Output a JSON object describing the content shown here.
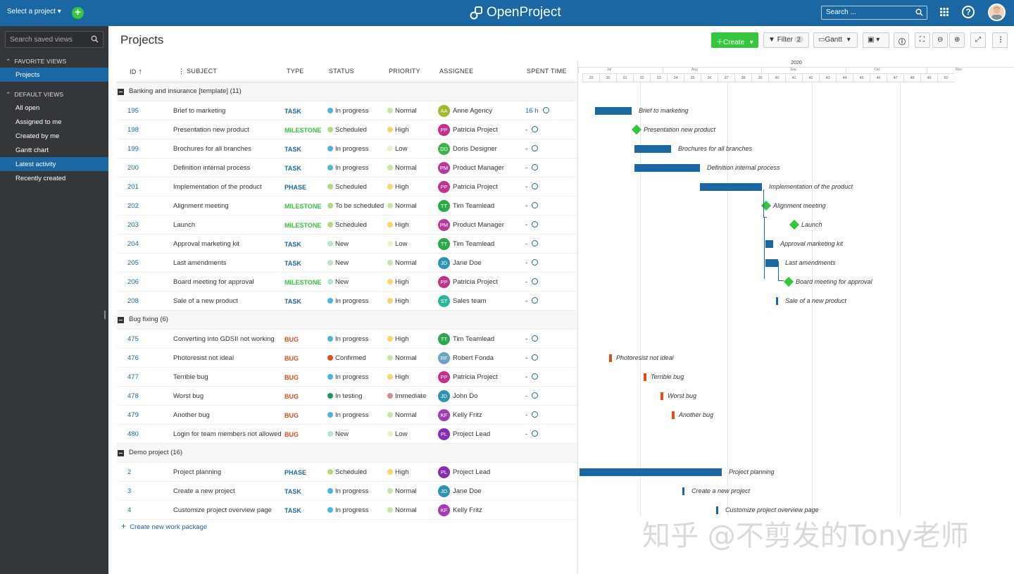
{
  "topbar": {
    "project_select": "Select a project ▾",
    "add_icon": "plus-icon",
    "logo_text": "OpenProject",
    "search_placeholder": "Search ...",
    "accent": "#1a67a3"
  },
  "sidebar": {
    "search_placeholder": "Search saved views",
    "favorite_header": "FAVORITE VIEWS",
    "favorite_items": [
      "Projects"
    ],
    "default_header": "DEFAULT VIEWS",
    "default_items": [
      "All open",
      "Assigned to me",
      "Created by me",
      "Gantt chart",
      "Latest activity",
      "Recently created"
    ]
  },
  "header": {
    "title": "Projects",
    "create_label": "Create",
    "filter_label": "Filter",
    "filter_count": "2",
    "gantt_label": "Gantt"
  },
  "columns": [
    "ID",
    "SUBJECT",
    "TYPE",
    "STATUS",
    "PRIORITY",
    "ASSIGNEE",
    "SPENT TIME"
  ],
  "groups": [
    {
      "label": "Banking and insurance [template] (11)",
      "rows": [
        {
          "id": "195",
          "subject": "Brief to marketing",
          "type": "TASK",
          "status": "In progress",
          "priority": "Normal",
          "initials": "AA",
          "assignee": "Anne Agency",
          "spent": "16 h"
        },
        {
          "id": "198",
          "subject": "Presentation new product",
          "type": "MILESTONE",
          "status": "Scheduled",
          "priority": "High",
          "initials": "PP",
          "assignee": "Patricia Project",
          "spent": "-"
        },
        {
          "id": "199",
          "subject": "Brochures for all branches",
          "type": "TASK",
          "status": "In progress",
          "priority": "Low",
          "initials": "DD",
          "assignee": "Doris Designer",
          "spent": "-"
        },
        {
          "id": "200",
          "subject": "Definition internal process",
          "type": "TASK",
          "status": "In progress",
          "priority": "Normal",
          "initials": "PM",
          "assignee": "Product Manager",
          "spent": "-"
        },
        {
          "id": "201",
          "subject": "Implementation of the product",
          "type": "PHASE",
          "status": "Scheduled",
          "priority": "High",
          "initials": "PP",
          "assignee": "Patricia Project",
          "spent": "-"
        },
        {
          "id": "202",
          "subject": "Alignment meeting",
          "type": "MILESTONE",
          "status": "To be scheduled",
          "priority": "Normal",
          "initials": "TT",
          "assignee": "Tim Teamlead",
          "spent": "-"
        },
        {
          "id": "203",
          "subject": "Launch",
          "type": "MILESTONE",
          "status": "Scheduled",
          "priority": "High",
          "initials": "PM",
          "assignee": "Product Manager",
          "spent": "-"
        },
        {
          "id": "204",
          "subject": "Approval marketing kit",
          "type": "TASK",
          "status": "New",
          "priority": "Low",
          "initials": "TT",
          "assignee": "Tim Teamlead",
          "spent": "-"
        },
        {
          "id": "205",
          "subject": "Last amendments",
          "type": "TASK",
          "status": "New",
          "priority": "Normal",
          "initials": "JD",
          "assignee": "Jane Doe",
          "spent": "-"
        },
        {
          "id": "206",
          "subject": "Board meeting for approval",
          "type": "MILESTONE",
          "status": "New",
          "priority": "High",
          "initials": "PP",
          "assignee": "Patricia Project",
          "spent": "-"
        },
        {
          "id": "208",
          "subject": "Sale of a new product",
          "type": "TASK",
          "status": "In progress",
          "priority": "High",
          "initials": "ST",
          "assignee": "Sales team",
          "spent": "-"
        }
      ]
    },
    {
      "label": "Bug fixing (6)",
      "rows": [
        {
          "id": "475",
          "subject": "Converting into GDSII not working",
          "type": "BUG",
          "status": "In progress",
          "priority": "High",
          "initials": "TT",
          "assignee": "Tim Teamlead",
          "spent": "-"
        },
        {
          "id": "476",
          "subject": "Photoresist not ideal",
          "type": "BUG",
          "status": "Confirmed",
          "priority": "Normal",
          "initials": "RF",
          "assignee": "Robert Fonda",
          "spent": "-"
        },
        {
          "id": "477",
          "subject": "Terrible bug",
          "type": "BUG",
          "status": "In progress",
          "priority": "High",
          "initials": "PP",
          "assignee": "Patricia Project",
          "spent": "-"
        },
        {
          "id": "478",
          "subject": "Worst bug",
          "type": "BUG",
          "status": "In testing",
          "priority": "Immediate",
          "initials": "JD",
          "assignee": "John Do",
          "spent": "-"
        },
        {
          "id": "479",
          "subject": "Another bug",
          "type": "BUG",
          "status": "In progress",
          "priority": "Normal",
          "initials": "KF",
          "assignee": "Kelly Fritz",
          "spent": "-"
        },
        {
          "id": "480",
          "subject": "Login for team members not allowed",
          "type": "BUG",
          "status": "New",
          "priority": "Low",
          "initials": "PL",
          "assignee": "Project Lead",
          "spent": "-"
        }
      ]
    },
    {
      "label": "Demo project (16)",
      "rows": [
        {
          "id": "2",
          "subject": "Project planning",
          "type": "PHASE",
          "status": "Scheduled",
          "priority": "High",
          "initials": "PL",
          "assignee": "Project Lead",
          "spent": ""
        },
        {
          "id": "3",
          "subject": "Create a new project",
          "type": "TASK",
          "status": "In progress",
          "priority": "Normal",
          "initials": "JD",
          "assignee": "Jane Doe",
          "spent": ""
        },
        {
          "id": "4",
          "subject": "Customize project overview page",
          "type": "TASK",
          "status": "In progress",
          "priority": "Normal",
          "initials": "KF",
          "assignee": "Kelly Fritz",
          "spent": ""
        }
      ]
    }
  ],
  "create_new_label": "Create new work package",
  "gantt": {
    "year": "2020",
    "months": [
      "Jul",
      "Aug",
      "Sep",
      "Oct",
      "Nov"
    ],
    "weeks": [
      "29",
      "30",
      "31",
      "32",
      "33",
      "34",
      "35",
      "36",
      "37",
      "38",
      "39",
      "40",
      "41",
      "42",
      "43",
      "44",
      "45",
      "46",
      "47",
      "48",
      "49",
      "50"
    ]
  },
  "watermark": "知乎 @不剪发的Tony老师",
  "colors": {
    "type": {
      "TASK": "#1a67a3",
      "MILESTONE": "#35c53f",
      "PHASE": "#1a67a3",
      "BUG": "#e64b19"
    },
    "status": {
      "In progress": "#4ab7d8",
      "Scheduled": "#b6d97e",
      "To be scheduled": "#b6d97e",
      "New": "#b8e6c8",
      "Confirmed": "#e64b19",
      "In testing": "#1c9a5a"
    },
    "priority": {
      "Normal": "#c5e6a5",
      "High": "#f8d66a",
      "Low": "#f0f0c8",
      "Immediate": "#d98a8a"
    },
    "avatar": {
      "AA": "#a0b92e",
      "PP": "#c5308f",
      "DD": "#3ab54a",
      "PM": "#b9389e",
      "TT": "#2aa84a",
      "JD": "#2d93b5",
      "ST": "#2ab59f",
      "RF": "#6aa3c8",
      "KF": "#a43bb3",
      "PL": "#8a2cb3"
    }
  }
}
